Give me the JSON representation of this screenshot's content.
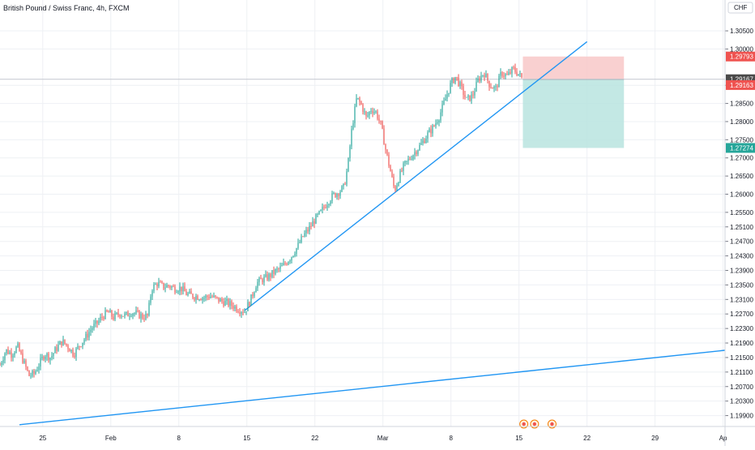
{
  "chart_title": "British Pound / Swiss Franc, 4h, FXCM",
  "currency_label": "CHF",
  "colors": {
    "up": "#26a69a",
    "down": "#ef5350",
    "trendline": "#2196f3",
    "stop_zone": "#f8c8c8",
    "target_zone": "#b8e4df",
    "grid": "#eef0f4",
    "axis": "#787b86"
  },
  "icons": [
    "dividend-event-icon",
    "dividend-event-icon",
    "dividend-event-icon"
  ],
  "price_badges": [
    {
      "label": "1.29793",
      "color": "#ef5350"
    },
    {
      "label": "1.29167",
      "color": "#4a4a4a"
    },
    {
      "label": "1.29163",
      "color": "#ef5350"
    },
    {
      "label": "1.27274",
      "color": "#26a69a"
    }
  ],
  "chart_data": {
    "type": "candlestick",
    "title": "British Pound / Swiss Franc, 4h, FXCM",
    "ylim": [
      1.196,
      1.3135
    ],
    "y_ticks": [
      "1.19900",
      "1.20300",
      "1.20700",
      "1.21100",
      "1.21500",
      "1.21900",
      "1.22300",
      "1.22700",
      "1.23100",
      "1.23500",
      "1.23900",
      "1.24300",
      "1.24700",
      "1.25100",
      "1.25500",
      "1.26000",
      "1.26500",
      "1.27000",
      "1.27500",
      "1.28000",
      "1.28500",
      "1.29000",
      "1.30000",
      "1.30500"
    ],
    "x_ticks": [
      "25",
      "Feb",
      "8",
      "15",
      "22",
      "Mar",
      "8",
      "15",
      "22",
      "29",
      "Ap"
    ],
    "x_ticks_day": [
      -7,
      0,
      7,
      14,
      21,
      28,
      35,
      42,
      49,
      56,
      63
    ],
    "x_range_days": [
      -11.4,
      63.2
    ],
    "price_path": [
      [
        -11.4,
        1.213
      ],
      [
        -10.8,
        1.217
      ],
      [
        -10.2,
        1.216
      ],
      [
        -9.6,
        1.218
      ],
      [
        -9.0,
        1.214
      ],
      [
        -8.4,
        1.21
      ],
      [
        -7.9,
        1.2105
      ],
      [
        -7.4,
        1.213
      ],
      [
        -6.8,
        1.216
      ],
      [
        -6.2,
        1.215
      ],
      [
        -5.6,
        1.2175
      ],
      [
        -5.0,
        1.2195
      ],
      [
        -4.4,
        1.218
      ],
      [
        -3.8,
        1.216
      ],
      [
        -3.2,
        1.2185
      ],
      [
        -2.6,
        1.2205
      ],
      [
        -2.0,
        1.223
      ],
      [
        -1.4,
        1.2245
      ],
      [
        -0.8,
        1.2265
      ],
      [
        -0.3,
        1.2275
      ],
      [
        0.3,
        1.226
      ],
      [
        0.9,
        1.2272
      ],
      [
        1.5,
        1.2265
      ],
      [
        2.1,
        1.2275
      ],
      [
        2.7,
        1.227
      ],
      [
        3.3,
        1.2262
      ],
      [
        3.8,
        1.2265
      ],
      [
        4.2,
        1.234
      ],
      [
        4.8,
        1.2355
      ],
      [
        5.4,
        1.2345
      ],
      [
        6.0,
        1.2348
      ],
      [
        6.6,
        1.234
      ],
      [
        7.2,
        1.2342
      ],
      [
        7.8,
        1.2325
      ],
      [
        8.4,
        1.232
      ],
      [
        9.0,
        1.2318
      ],
      [
        9.6,
        1.2315
      ],
      [
        10.2,
        1.232
      ],
      [
        10.8,
        1.2312
      ],
      [
        11.4,
        1.2305
      ],
      [
        12.0,
        1.23
      ],
      [
        12.6,
        1.2292
      ],
      [
        13.2,
        1.2282
      ],
      [
        13.8,
        1.2278
      ],
      [
        14.4,
        1.231
      ],
      [
        15.0,
        1.2355
      ],
      [
        15.6,
        1.2365
      ],
      [
        16.2,
        1.2372
      ],
      [
        16.8,
        1.2385
      ],
      [
        17.4,
        1.2395
      ],
      [
        18.0,
        1.241
      ],
      [
        18.6,
        1.243
      ],
      [
        19.2,
        1.2455
      ],
      [
        19.8,
        1.2485
      ],
      [
        20.4,
        1.2505
      ],
      [
        21.0,
        1.253
      ],
      [
        21.6,
        1.255
      ],
      [
        22.2,
        1.2575
      ],
      [
        22.8,
        1.2595
      ],
      [
        23.4,
        1.2605
      ],
      [
        24.0,
        1.262
      ],
      [
        24.4,
        1.268
      ],
      [
        24.8,
        1.278
      ],
      [
        25.3,
        1.2865
      ],
      [
        25.8,
        1.2845
      ],
      [
        26.3,
        1.281
      ],
      [
        26.8,
        1.2835
      ],
      [
        27.3,
        1.2825
      ],
      [
        27.8,
        1.279
      ],
      [
        28.3,
        1.272
      ],
      [
        28.8,
        1.266
      ],
      [
        29.2,
        1.261
      ],
      [
        29.7,
        1.265
      ],
      [
        30.2,
        1.268
      ],
      [
        30.8,
        1.27
      ],
      [
        31.4,
        1.272
      ],
      [
        32.0,
        1.274
      ],
      [
        32.6,
        1.2765
      ],
      [
        33.2,
        1.2785
      ],
      [
        33.8,
        1.2815
      ],
      [
        34.4,
        1.286
      ],
      [
        35.0,
        1.2905
      ],
      [
        35.5,
        1.2925
      ],
      [
        36.0,
        1.2895
      ],
      [
        36.6,
        1.286
      ],
      [
        37.2,
        1.287
      ],
      [
        37.8,
        1.2915
      ],
      [
        38.4,
        1.2935
      ],
      [
        39.0,
        1.29
      ],
      [
        39.6,
        1.289
      ],
      [
        40.2,
        1.2935
      ],
      [
        40.8,
        1.2925
      ],
      [
        41.4,
        1.2945
      ],
      [
        42.0,
        1.293
      ],
      [
        42.4,
        1.2916
      ]
    ],
    "trendlines": [
      {
        "x": [
          13.8,
          49.0
        ],
        "y": [
          1.228,
          1.302
        ]
      },
      {
        "x": [
          -9.4,
          63.2
        ],
        "y": [
          1.1965,
          1.217
        ]
      }
    ],
    "position": {
      "x": [
        42.4,
        52.8
      ],
      "entry": 1.29163,
      "stop": 1.29793,
      "target": 1.27274
    },
    "current_price": 1.29167,
    "event_days": [
      42.5,
      43.6,
      45.4
    ]
  }
}
